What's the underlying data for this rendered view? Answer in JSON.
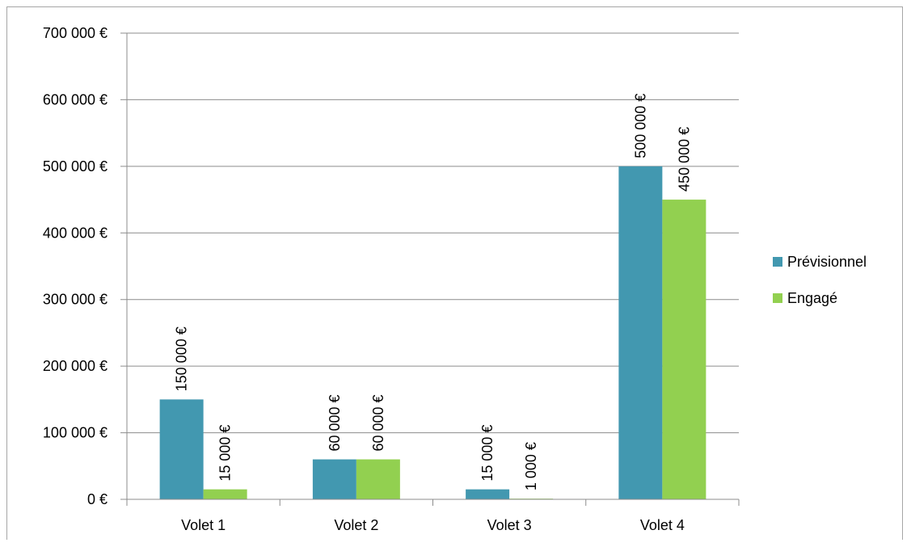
{
  "chart_data": {
    "type": "bar",
    "categories": [
      "Volet 1",
      "Volet 2",
      "Volet 3",
      "Volet 4"
    ],
    "series": [
      {
        "name": "Prévisionnel",
        "color": "#4298B0",
        "values": [
          150000,
          60000,
          15000,
          500000
        ],
        "labels": [
          "150 000 €",
          "60 000 €",
          "15 000 €",
          "500 000 €"
        ]
      },
      {
        "name": "Engagé",
        "color": "#92D050",
        "values": [
          15000,
          60000,
          1000,
          450000
        ],
        "labels": [
          "15 000 €",
          "60 000 €",
          "1 000 €",
          "450 000 €"
        ]
      }
    ],
    "yticks": [
      0,
      100000,
      200000,
      300000,
      400000,
      500000,
      600000,
      700000
    ],
    "ytick_labels": [
      "0 €",
      "100 000 €",
      "200 000 €",
      "300 000 €",
      "400 000 €",
      "500 000 €",
      "600 000 €",
      "700 000 €"
    ],
    "ylim": [
      0,
      700000
    ],
    "grid": true,
    "legend_position": "right"
  }
}
